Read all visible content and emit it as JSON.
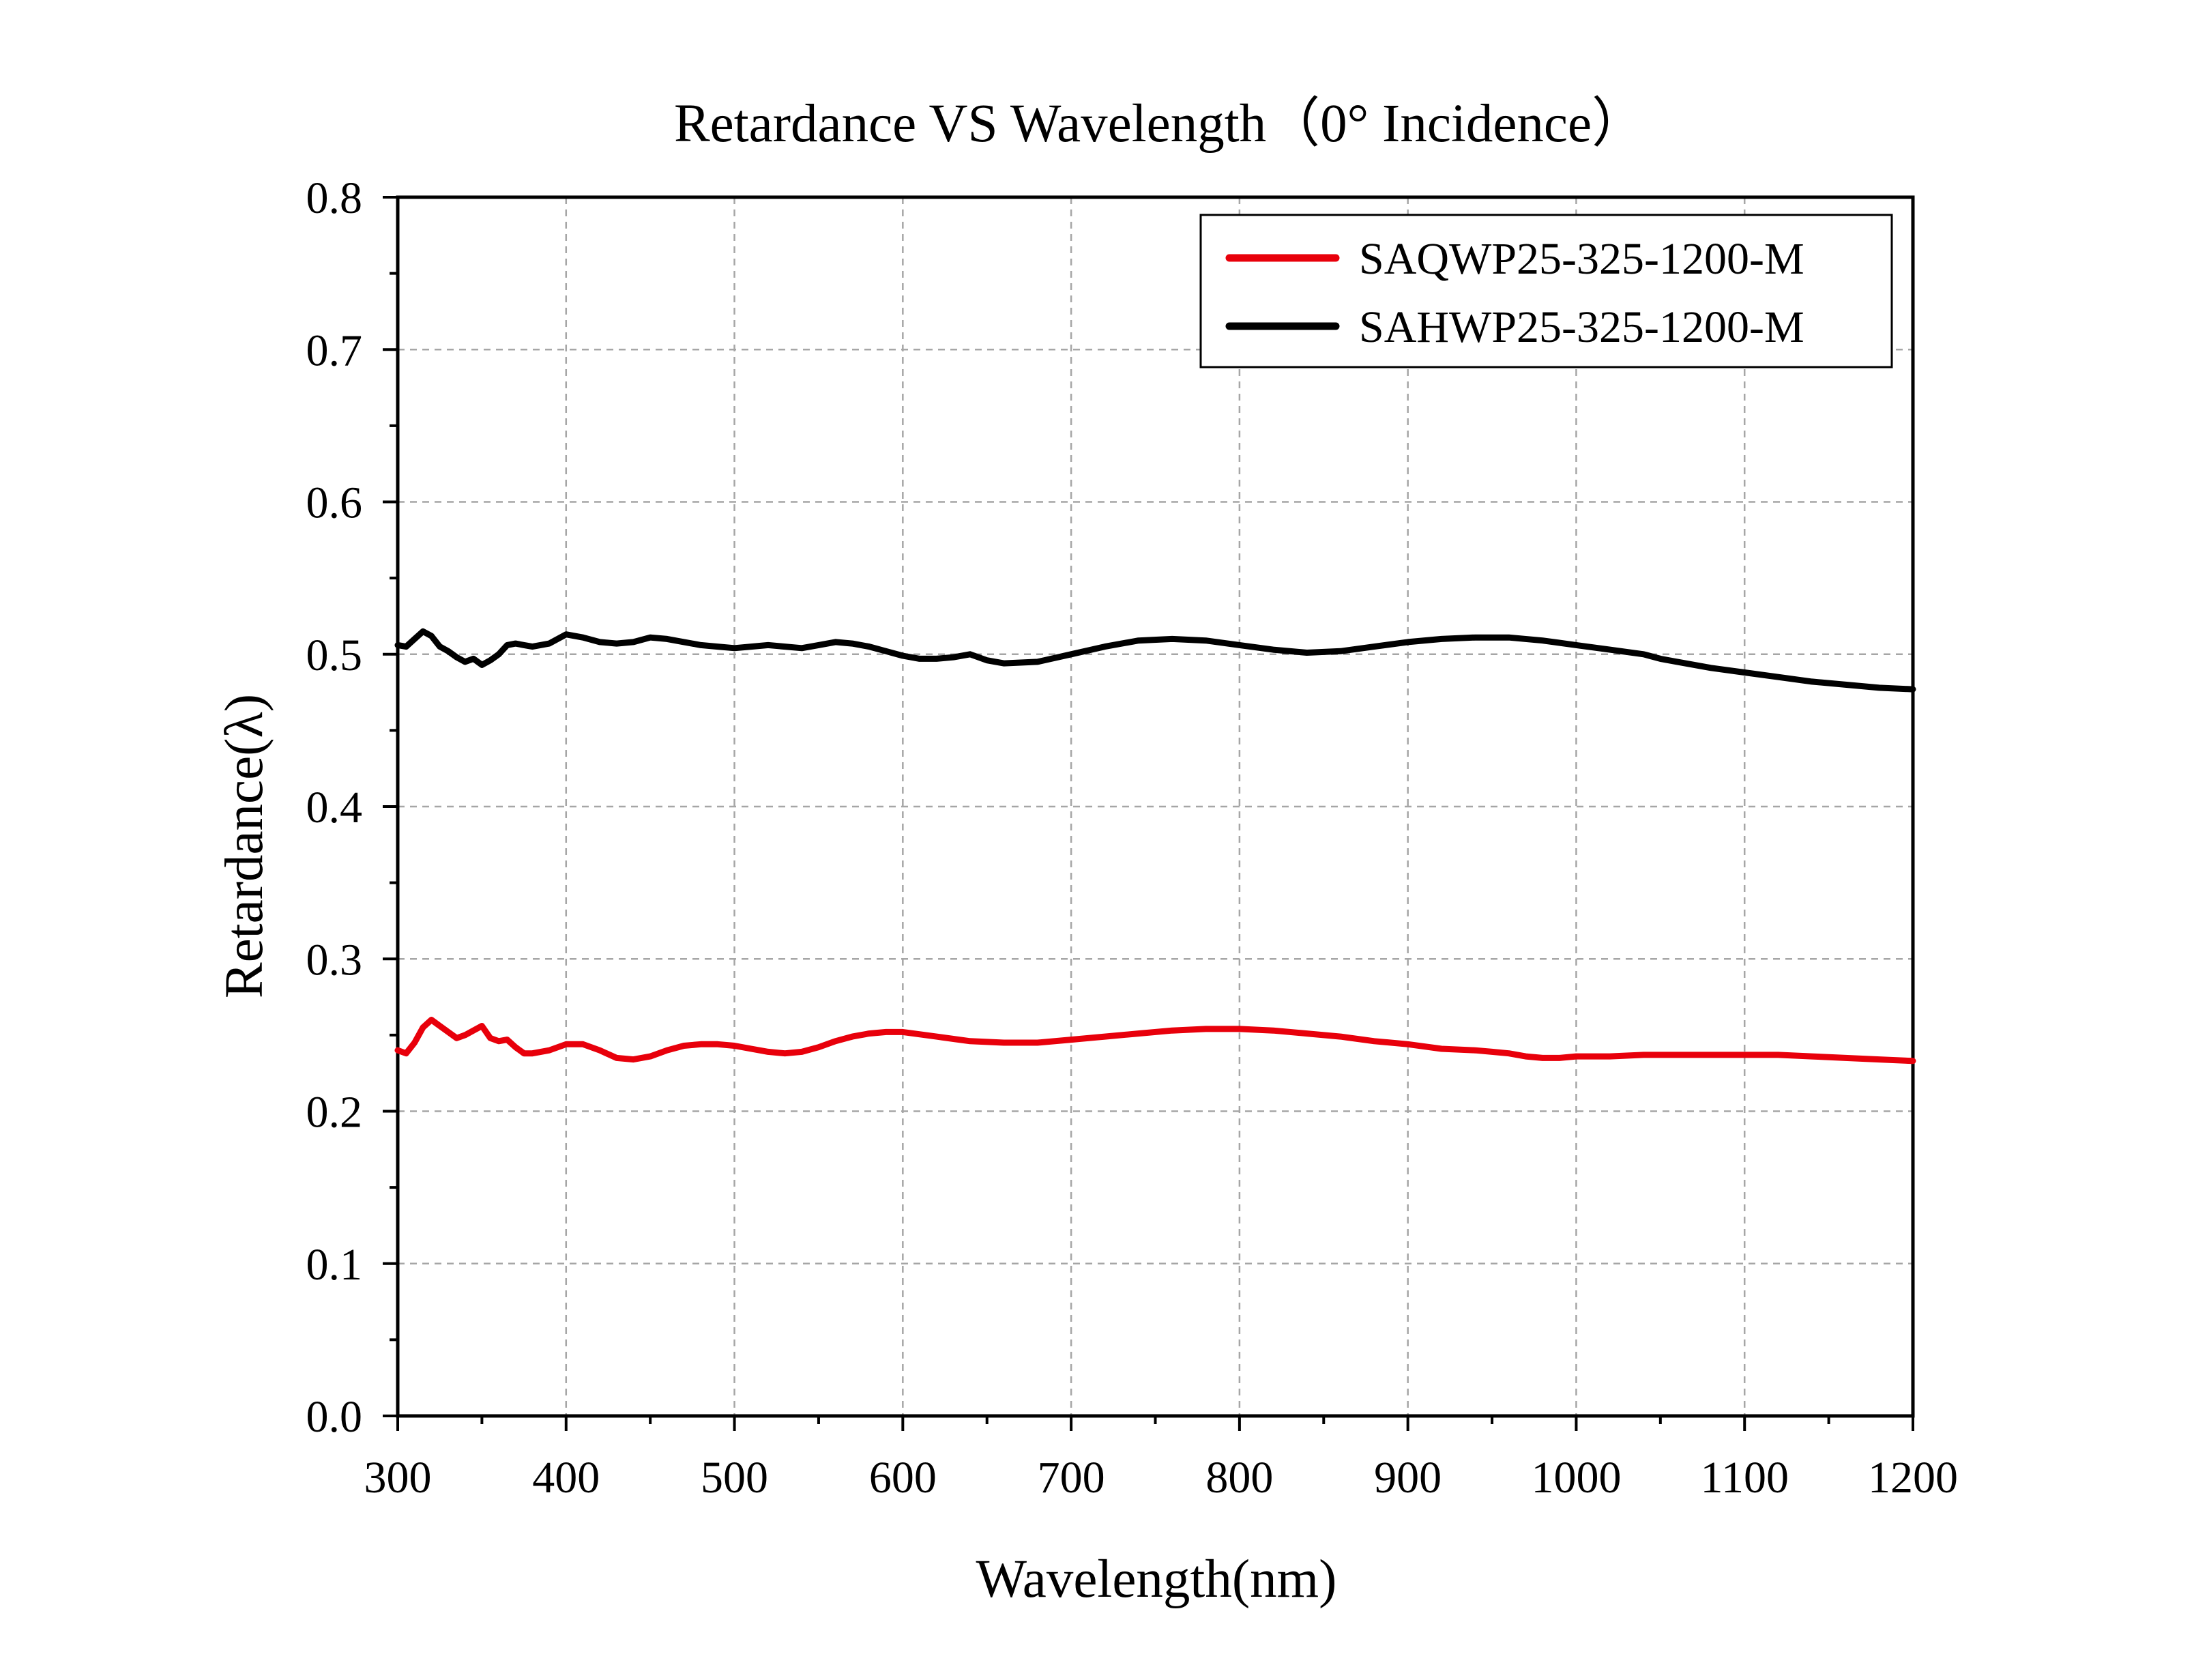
{
  "chart_data": {
    "type": "line",
    "title": "Retardance VS Wavelength（0° Incidence）",
    "xlabel": "Wavelength(nm)",
    "ylabel": "Retardance(λ)",
    "xlim": [
      300,
      1200
    ],
    "ylim": [
      0.0,
      0.8
    ],
    "x_ticks": [
      300,
      400,
      500,
      600,
      700,
      800,
      900,
      1000,
      1100,
      1200
    ],
    "y_ticks": [
      0.0,
      0.1,
      0.2,
      0.3,
      0.4,
      0.5,
      0.6,
      0.7,
      0.8
    ],
    "x_tick_labels": [
      "300",
      "400",
      "500",
      "600",
      "700",
      "800",
      "900",
      "1000",
      "1100",
      "1200"
    ],
    "y_tick_labels": [
      "0.0",
      "0.1",
      "0.2",
      "0.3",
      "0.4",
      "0.5",
      "0.6",
      "0.7",
      "0.8"
    ],
    "grid": true,
    "legend_position": "top-right",
    "series": [
      {
        "name": "SAQWP25-325-1200-M",
        "color": "#e8000b",
        "x": [
          300,
          305,
          310,
          315,
          320,
          325,
          330,
          335,
          340,
          345,
          350,
          355,
          360,
          365,
          370,
          375,
          380,
          390,
          400,
          410,
          420,
          430,
          440,
          450,
          460,
          470,
          480,
          490,
          500,
          510,
          520,
          530,
          540,
          550,
          560,
          570,
          580,
          590,
          600,
          620,
          640,
          660,
          680,
          700,
          720,
          740,
          760,
          780,
          800,
          820,
          840,
          860,
          880,
          900,
          920,
          940,
          950,
          960,
          970,
          980,
          990,
          1000,
          1020,
          1040,
          1060,
          1080,
          1100,
          1120,
          1140,
          1160,
          1180,
          1200
        ],
        "y": [
          0.24,
          0.238,
          0.245,
          0.255,
          0.26,
          0.256,
          0.252,
          0.248,
          0.25,
          0.253,
          0.256,
          0.248,
          0.246,
          0.247,
          0.242,
          0.238,
          0.238,
          0.24,
          0.244,
          0.244,
          0.24,
          0.235,
          0.234,
          0.236,
          0.24,
          0.243,
          0.244,
          0.244,
          0.243,
          0.241,
          0.239,
          0.238,
          0.239,
          0.242,
          0.246,
          0.249,
          0.251,
          0.252,
          0.252,
          0.249,
          0.246,
          0.245,
          0.245,
          0.247,
          0.249,
          0.251,
          0.253,
          0.254,
          0.254,
          0.253,
          0.251,
          0.249,
          0.246,
          0.244,
          0.241,
          0.24,
          0.239,
          0.238,
          0.236,
          0.235,
          0.235,
          0.236,
          0.236,
          0.237,
          0.237,
          0.237,
          0.237,
          0.237,
          0.236,
          0.235,
          0.234,
          0.233
        ]
      },
      {
        "name": "SAHWP25-325-1200-M",
        "color": "#000000",
        "x": [
          300,
          305,
          310,
          315,
          320,
          325,
          330,
          335,
          340,
          345,
          350,
          355,
          360,
          365,
          370,
          375,
          380,
          390,
          400,
          410,
          420,
          430,
          440,
          450,
          460,
          470,
          480,
          490,
          500,
          510,
          520,
          530,
          540,
          550,
          560,
          570,
          580,
          590,
          600,
          610,
          620,
          630,
          640,
          650,
          660,
          680,
          700,
          720,
          740,
          760,
          780,
          800,
          820,
          840,
          860,
          880,
          900,
          920,
          940,
          960,
          980,
          1000,
          1020,
          1040,
          1050,
          1060,
          1080,
          1100,
          1120,
          1140,
          1160,
          1180,
          1200
        ],
        "y": [
          0.506,
          0.505,
          0.51,
          0.515,
          0.512,
          0.505,
          0.502,
          0.498,
          0.495,
          0.497,
          0.493,
          0.496,
          0.5,
          0.506,
          0.507,
          0.506,
          0.505,
          0.507,
          0.513,
          0.511,
          0.508,
          0.507,
          0.508,
          0.511,
          0.51,
          0.508,
          0.506,
          0.505,
          0.504,
          0.505,
          0.506,
          0.505,
          0.504,
          0.506,
          0.508,
          0.507,
          0.505,
          0.502,
          0.499,
          0.497,
          0.497,
          0.498,
          0.5,
          0.496,
          0.494,
          0.495,
          0.5,
          0.505,
          0.509,
          0.51,
          0.509,
          0.506,
          0.503,
          0.501,
          0.502,
          0.505,
          0.508,
          0.51,
          0.511,
          0.511,
          0.509,
          0.506,
          0.503,
          0.5,
          0.497,
          0.495,
          0.491,
          0.488,
          0.485,
          0.482,
          0.48,
          0.478,
          0.477
        ]
      }
    ]
  }
}
